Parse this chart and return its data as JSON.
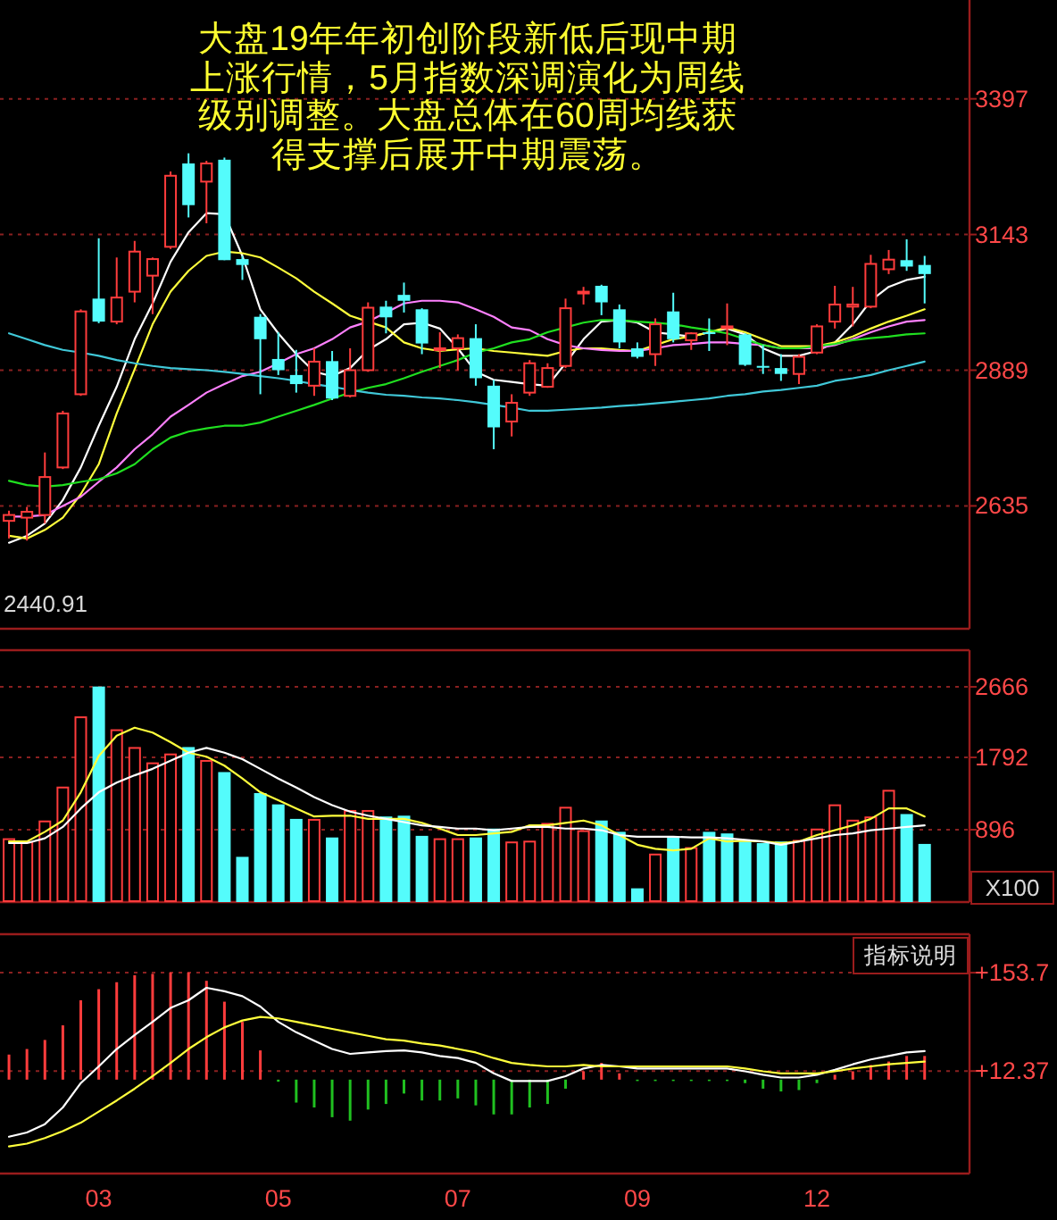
{
  "chart_data": [
    {
      "type": "candlestick",
      "title": "大盘19年年初创阶段新低后现中期上涨行情，5月指数深调演化为周线级别调整。大盘总体在60周均线获得支撑后展开中期震荡。",
      "categories": [
        null,
        null,
        null,
        null,
        null,
        null,
        null,
        null,
        null,
        null,
        null,
        null,
        null,
        null,
        null,
        null,
        null,
        null,
        null,
        null,
        null,
        null,
        null,
        null,
        null,
        null,
        null,
        null,
        null,
        null,
        null,
        null,
        null,
        null,
        null,
        null,
        null,
        null,
        null,
        null,
        null,
        null,
        null,
        null,
        null,
        null,
        null,
        null,
        null,
        null,
        null,
        null
      ],
      "tick_labels": "y",
      "ohlc": [
        [
          2607,
          2626,
          2574,
          2618
        ],
        [
          2613,
          2633,
          2570,
          2624
        ],
        [
          2618,
          2735,
          2602,
          2689
        ],
        [
          2707,
          2813,
          2704,
          2808
        ],
        [
          2844,
          3003,
          2841,
          2999
        ],
        [
          3023,
          3136,
          2977,
          2980
        ],
        [
          2980,
          3100,
          2975,
          3025
        ],
        [
          3036,
          3131,
          3016,
          3111
        ],
        [
          3066,
          3100,
          2994,
          3097
        ],
        [
          3120,
          3261,
          3116,
          3253
        ],
        [
          3276,
          3295,
          3175,
          3198
        ],
        [
          3242,
          3281,
          3164,
          3276
        ],
        [
          3283,
          3287,
          3095,
          3095
        ],
        [
          3097,
          3103,
          3058,
          3086
        ],
        [
          2989,
          2994,
          2844,
          2947
        ],
        [
          2910,
          2960,
          2880,
          2889
        ],
        [
          2880,
          2927,
          2847,
          2863
        ],
        [
          2860,
          2930,
          2841,
          2905
        ],
        [
          2906,
          2925,
          2833,
          2836
        ],
        [
          2841,
          2930,
          2838,
          2889
        ],
        [
          2889,
          3016,
          2886,
          3006
        ],
        [
          3008,
          3019,
          2958,
          2988
        ],
        [
          3030,
          3053,
          2997,
          3019
        ],
        [
          3003,
          3005,
          2919,
          2939
        ],
        [
          2927,
          2960,
          2893,
          2930
        ],
        [
          2930,
          2956,
          2889,
          2949
        ],
        [
          2949,
          2975,
          2860,
          2874
        ],
        [
          2860,
          2871,
          2741,
          2782
        ],
        [
          2793,
          2844,
          2765,
          2828
        ],
        [
          2847,
          2908,
          2841,
          2902
        ],
        [
          2858,
          2902,
          2856,
          2893
        ],
        [
          2897,
          3023,
          2893,
          3005
        ],
        [
          3033,
          3045,
          3012,
          3036
        ],
        [
          3047,
          3049,
          2992,
          3016
        ],
        [
          3003,
          3012,
          2930,
          2941
        ],
        [
          2930,
          2941,
          2911,
          2914
        ],
        [
          2919,
          2986,
          2897,
          2975
        ],
        [
          2999,
          3034,
          2941,
          2947
        ],
        [
          2945,
          2960,
          2927,
          2958
        ],
        [
          2960,
          2986,
          2925,
          2958
        ],
        [
          2969,
          3014,
          2936,
          2971
        ],
        [
          2956,
          2958,
          2897,
          2899
        ],
        [
          2897,
          2936,
          2882,
          2895
        ],
        [
          2893,
          2919,
          2869,
          2882
        ],
        [
          2882,
          2919,
          2863,
          2914
        ],
        [
          2922,
          2975,
          2919,
          2971
        ],
        [
          2980,
          3047,
          2967,
          3012
        ],
        [
          3008,
          3045,
          2971,
          3012
        ],
        [
          3008,
          3105,
          3005,
          3088
        ],
        [
          3078,
          3114,
          3069,
          3096
        ],
        [
          3095,
          3134,
          3075,
          3083
        ],
        [
          3086,
          3103,
          3014,
          3069
        ]
      ],
      "colors": [
        "#ff3c3c",
        "#ff3c3c",
        "#ff3c3c",
        "#ff3c3c",
        "#ff3c3c",
        "#54fcfc",
        "#ff3c3c",
        "#ff3c3c",
        "#ff3c3c",
        "#ff3c3c",
        "#54fcfc",
        "#ff3c3c",
        "#54fcfc",
        "#54fcfc",
        "#54fcfc",
        "#54fcfc",
        "#54fcfc",
        "#ff3c3c",
        "#54fcfc",
        "#ff3c3c",
        "#ff3c3c",
        "#54fcfc",
        "#54fcfc",
        "#54fcfc",
        "#ff3c3c",
        "#ff3c3c",
        "#54fcfc",
        "#54fcfc",
        "#ff3c3c",
        "#ff3c3c",
        "#ff3c3c",
        "#ff3c3c",
        "#ff3c3c",
        "#54fcfc",
        "#54fcfc",
        "#54fcfc",
        "#ff3c3c",
        "#54fcfc",
        "#ff3c3c",
        "#54fcfc",
        "#ff3c3c",
        "#54fcfc",
        "#54fcfc",
        "#54fcfc",
        "#ff3c3c",
        "#ff3c3c",
        "#ff3c3c",
        "#ff3c3c",
        "#ff3c3c",
        "#ff3c3c",
        "#54fcfc",
        "#54fcfc"
      ],
      "series": [
        {
          "type": "line",
          "color": "#ffffff",
          "values": [
            2566,
            2579,
            2602,
            2646,
            2707,
            2785,
            2858,
            2947,
            3014,
            3092,
            3147,
            3183,
            3181,
            3103,
            3003,
            2958,
            2919,
            2886,
            2878,
            2893,
            2927,
            2947,
            2975,
            2978,
            2967,
            2930,
            2886,
            2871,
            2867,
            2863,
            2860,
            2902,
            2947,
            2980,
            2983,
            2978,
            2960,
            2956,
            2952,
            2960,
            2967,
            2956,
            2930,
            2916,
            2916,
            2925,
            2941,
            2975,
            3019,
            3045,
            3058,
            3064
          ]
        },
        {
          "type": "line",
          "color": "#ffff3c",
          "values": [
            2579,
            2574,
            2590,
            2613,
            2657,
            2713,
            2808,
            2891,
            2975,
            3036,
            3075,
            3103,
            3111,
            3108,
            3100,
            3081,
            3061,
            3036,
            3014,
            2991,
            2980,
            2969,
            2941,
            2930,
            2925,
            2928,
            2930,
            2925,
            2922,
            2919,
            2916,
            2925,
            2930,
            2930,
            2927,
            2925,
            2936,
            2947,
            2952,
            2960,
            2969,
            2960,
            2947,
            2934,
            2934,
            2934,
            2941,
            2952,
            2967,
            2980,
            2991,
            3003
          ]
        },
        {
          "type": "line",
          "color": "#ff80ff",
          "values": [
            2615,
            2615,
            2618,
            2635,
            2652,
            2680,
            2707,
            2741,
            2769,
            2802,
            2824,
            2847,
            2863,
            2878,
            2886,
            2902,
            2919,
            2930,
            2947,
            2969,
            2980,
            2997,
            3014,
            3019,
            3019,
            3016,
            3003,
            2989,
            2969,
            2964,
            2947,
            2936,
            2930,
            2927,
            2925,
            2925,
            2930,
            2936,
            2938,
            2941,
            2941,
            2938,
            2936,
            2930,
            2930,
            2930,
            2936,
            2947,
            2960,
            2971,
            2980,
            2983
          ]
        },
        {
          "type": "line",
          "color": "#20e020",
          "values": [
            2682,
            2674,
            2671,
            2674,
            2680,
            2685,
            2696,
            2713,
            2741,
            2763,
            2774,
            2780,
            2785,
            2785,
            2791,
            2802,
            2813,
            2824,
            2836,
            2847,
            2856,
            2863,
            2874,
            2886,
            2897,
            2908,
            2922,
            2930,
            2941,
            2947,
            2960,
            2969,
            2978,
            2983,
            2983,
            2980,
            2978,
            2975,
            2969,
            2964,
            2958,
            2947,
            2936,
            2930,
            2930,
            2934,
            2938,
            2945,
            2949,
            2952,
            2956,
            2958
          ]
        },
        {
          "type": "line",
          "color": "#40c8d8",
          "values": [
            2958,
            2947,
            2936,
            2927,
            2922,
            2916,
            2908,
            2902,
            2897,
            2893,
            2891,
            2889,
            2886,
            2882,
            2878,
            2874,
            2869,
            2863,
            2858,
            2852,
            2847,
            2843,
            2841,
            2838,
            2836,
            2833,
            2829,
            2824,
            2819,
            2813,
            2813,
            2815,
            2817,
            2819,
            2822,
            2824,
            2827,
            2830,
            2833,
            2836,
            2841,
            2844,
            2849,
            2852,
            2856,
            2860,
            2869,
            2874,
            2880,
            2889,
            2897,
            2905
          ]
        }
      ],
      "ylim": [
        2405,
        3582
      ],
      "yticks": [
        2635,
        2889,
        3143,
        3397
      ],
      "grid": "y",
      "annotations": [
        "2440.91"
      ]
    },
    {
      "type": "bar",
      "categories": [
        null,
        null,
        null,
        null,
        null,
        null,
        null,
        null,
        null,
        null,
        null,
        null,
        null,
        null,
        null,
        null,
        null,
        null,
        null,
        null,
        null,
        null,
        null,
        null,
        null,
        null,
        null,
        null,
        null,
        null,
        null,
        null,
        null,
        null,
        null,
        null,
        null,
        null,
        null,
        null,
        null,
        null,
        null,
        null,
        null,
        null,
        null,
        null,
        null,
        null,
        null,
        null
      ],
      "tick_labels": "y",
      "series": [
        {
          "colors": [
            "#ff3c3c",
            "#ff3c3c",
            "#ff3c3c",
            "#ff3c3c",
            "#ff3c3c",
            "#54fcfc",
            "#ff3c3c",
            "#ff3c3c",
            "#ff3c3c",
            "#ff3c3c",
            "#54fcfc",
            "#ff3c3c",
            "#54fcfc",
            "#54fcfc",
            "#54fcfc",
            "#54fcfc",
            "#54fcfc",
            "#ff3c3c",
            "#54fcfc",
            "#ff3c3c",
            "#ff3c3c",
            "#54fcfc",
            "#54fcfc",
            "#54fcfc",
            "#ff3c3c",
            "#ff3c3c",
            "#54fcfc",
            "#54fcfc",
            "#ff3c3c",
            "#ff3c3c",
            "#ff3c3c",
            "#ff3c3c",
            "#ff3c3c",
            "#54fcfc",
            "#54fcfc",
            "#54fcfc",
            "#ff3c3c",
            "#54fcfc",
            "#ff3c3c",
            "#54fcfc",
            "#54fcfc",
            "#54fcfc",
            "#54fcfc",
            "#54fcfc",
            "#ff3c3c",
            "#ff3c3c",
            "#ff3c3c",
            "#ff3c3c",
            "#ff3c3c",
            "#ff3c3c",
            "#54fcfc",
            "#54fcfc"
          ],
          "values": [
            790,
            750,
            1010,
            1430,
            2300,
            2670,
            2140,
            1920,
            1730,
            1840,
            1920,
            1760,
            1610,
            560,
            1350,
            1210,
            1030,
            1030,
            800,
            1140,
            1140,
            1060,
            1070,
            820,
            790,
            790,
            800,
            910,
            750,
            760,
            980,
            1180,
            890,
            1010,
            870,
            170,
            600,
            800,
            680,
            870,
            850,
            750,
            730,
            750,
            770,
            910,
            1210,
            1020,
            1060,
            1390,
            1090,
            720
          ]
        },
        {
          "type": "line",
          "color": "#ffff3c",
          "values": [
            750,
            750,
            870,
            1010,
            1360,
            1810,
            2060,
            2160,
            2100,
            1980,
            1850,
            1800,
            1690,
            1530,
            1360,
            1260,
            1160,
            1060,
            1070,
            1070,
            1030,
            1030,
            1030,
            980,
            910,
            830,
            830,
            850,
            870,
            950,
            950,
            980,
            1010,
            950,
            830,
            710,
            660,
            640,
            660,
            790,
            750,
            760,
            750,
            730,
            750,
            830,
            890,
            950,
            1030,
            1160,
            1160,
            1060
          ]
        },
        {
          "type": "line",
          "color": "#ffffff",
          "values": [
            730,
            730,
            790,
            930,
            1160,
            1360,
            1480,
            1570,
            1650,
            1750,
            1850,
            1910,
            1850,
            1770,
            1650,
            1530,
            1420,
            1300,
            1200,
            1120,
            1070,
            1030,
            990,
            950,
            930,
            910,
            910,
            890,
            910,
            930,
            930,
            910,
            910,
            890,
            830,
            810,
            810,
            810,
            800,
            800,
            790,
            770,
            750,
            710,
            750,
            790,
            830,
            850,
            890,
            910,
            930,
            950
          ]
        }
      ],
      "ylim": [
        0,
        3120
      ],
      "yticks": [
        896,
        1792,
        2666
      ],
      "grid": "y",
      "annotations": [
        "X100"
      ]
    },
    {
      "type": "bar",
      "categories": [
        null,
        null,
        null,
        null,
        null,
        "03",
        null,
        null,
        null,
        null,
        null,
        null,
        null,
        null,
        null,
        "05",
        null,
        null,
        null,
        null,
        null,
        null,
        null,
        null,
        null,
        "07",
        null,
        null,
        null,
        null,
        null,
        null,
        null,
        null,
        null,
        "09",
        null,
        null,
        null,
        null,
        null,
        null,
        null,
        null,
        null,
        "12",
        null,
        null,
        null,
        null,
        null,
        null
      ],
      "series": [
        {
          "colors": [
            "#ff3c3c",
            "#ff3c3c",
            "#ff3c3c",
            "#ff3c3c",
            "#ff3c3c",
            "#ff3c3c",
            "#ff3c3c",
            "#ff3c3c",
            "#ff3c3c",
            "#ff3c3c",
            "#ff3c3c",
            "#ff3c3c",
            "#ff3c3c",
            "#ff3c3c",
            "#ff3c3c",
            "#20c020",
            "#20c020",
            "#20c020",
            "#20c020",
            "#20c020",
            "#20c020",
            "#20c020",
            "#20c020",
            "#20c020",
            "#20c020",
            "#20c020",
            "#20c020",
            "#20c020",
            "#20c020",
            "#20c020",
            "#20c020",
            "#20c020",
            "#ff3c3c",
            "#ff3c3c",
            "#ff3c3c",
            "#20c020",
            "#20c020",
            "#20c020",
            "#20c020",
            "#20c020",
            "#20c020",
            "#20c020",
            "#20c020",
            "#20c020",
            "#20c020",
            "#20c020",
            "#ff3c3c",
            "#ff3c3c",
            "#ff3c3c",
            "#ff3c3c",
            "#ff3c3c",
            "#ff3c3c"
          ],
          "values": [
            36,
            44,
            57,
            78,
            114,
            130,
            140,
            150,
            152,
            154,
            154,
            142,
            112,
            83,
            42,
            -3,
            -33,
            -40,
            -54,
            -59,
            -43,
            -35,
            -20,
            -30,
            -30,
            -27,
            -37,
            -50,
            -50,
            -40,
            -35,
            -13,
            12,
            24,
            9,
            -1,
            -1,
            -2,
            -2,
            -1,
            -1,
            -5,
            -13,
            -17,
            -15,
            -5,
            7,
            12,
            21,
            26,
            34,
            34
          ]
        },
        {
          "type": "line",
          "color": "#ffffff",
          "values": [
            -82,
            -76,
            -64,
            -40,
            -5,
            19,
            44,
            64,
            83,
            103,
            114,
            132,
            127,
            120,
            105,
            83,
            68,
            56,
            44,
            37,
            39,
            41,
            42,
            39,
            34,
            31,
            24,
            9,
            -2,
            -2,
            -2,
            5,
            16,
            21,
            19,
            16,
            16,
            16,
            16,
            16,
            16,
            12,
            7,
            3,
            3,
            7,
            14,
            22,
            29,
            34,
            39,
            41
          ]
        },
        {
          "type": "line",
          "color": "#ffff3c",
          "values": [
            -96,
            -92,
            -84,
            -74,
            -62,
            -46,
            -30,
            -13,
            5,
            24,
            44,
            61,
            75,
            85,
            90,
            88,
            83,
            78,
            73,
            68,
            63,
            58,
            56,
            52,
            49,
            44,
            39,
            31,
            24,
            21,
            19,
            19,
            21,
            19,
            19,
            19,
            19,
            19,
            19,
            19,
            19,
            16,
            12,
            9,
            9,
            9,
            12,
            16,
            19,
            22,
            24,
            26
          ]
        }
      ],
      "ylim": [
        -135,
        209
      ],
      "yticks": [
        {
          "value": 153.7,
          "label": "+153.7"
        },
        {
          "value": 12.37,
          "label": "+12.37"
        }
      ],
      "grid": "y",
      "annotations": [
        "指标说明"
      ]
    }
  ]
}
